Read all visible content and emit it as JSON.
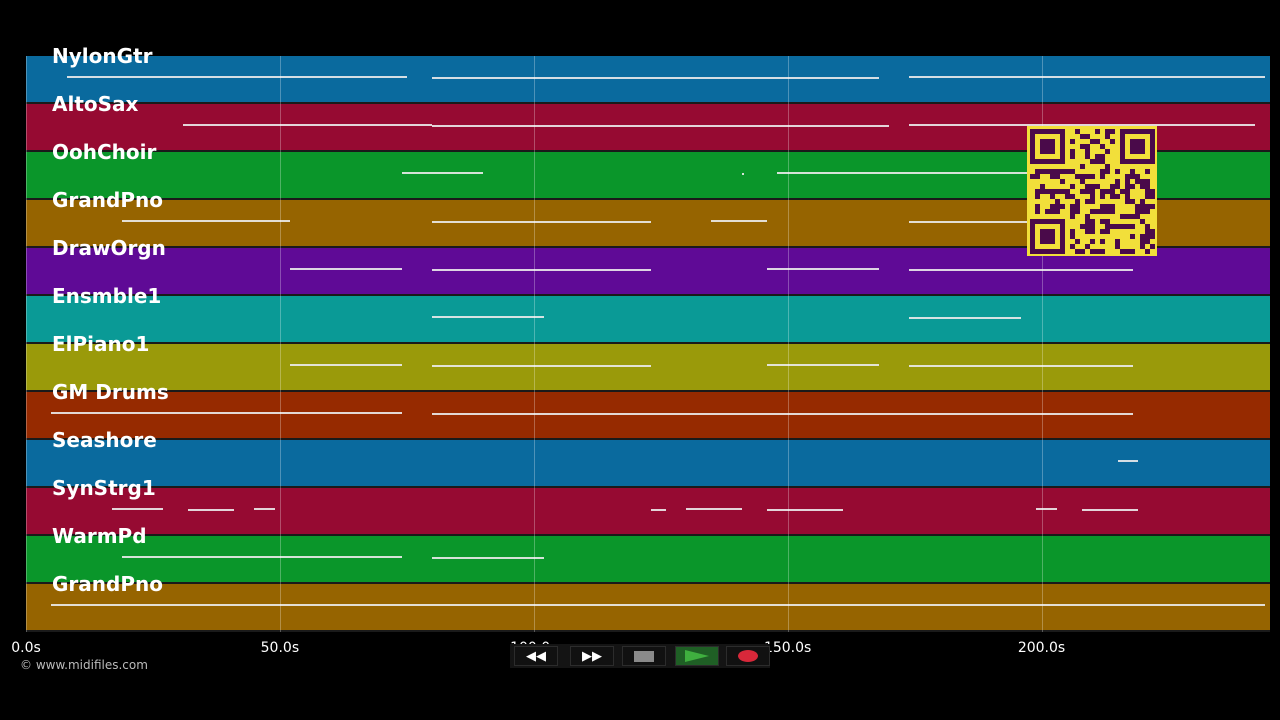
{
  "tracks": [
    {
      "name": "NylonGtr",
      "color": "#0a6a9e"
    },
    {
      "name": "AltoSax",
      "color": "#960a32"
    },
    {
      "name": "OohChoir",
      "color": "#0a962a"
    },
    {
      "name": "GrandPno",
      "color": "#966400"
    },
    {
      "name": "DrawOrgn",
      "color": "#5f0a96"
    },
    {
      "name": "Ensmble1",
      "color": "#0a9a96"
    },
    {
      "name": "ElPiano1",
      "color": "#9a9a0a"
    },
    {
      "name": "GM Drums",
      "color": "#962a00"
    },
    {
      "name": "Seashore",
      "color": "#0a6a9e"
    },
    {
      "name": "SynStrg1",
      "color": "#960a32"
    },
    {
      "name": "WarmPd",
      "color": "#0a962a"
    },
    {
      "name": "GrandPno",
      "color": "#966400"
    }
  ],
  "time_axis": {
    "ticks": [
      "0.0s",
      "50.0s",
      "100.0s",
      "150.0s",
      "200.0s"
    ],
    "tick_values": [
      0,
      50,
      100,
      150,
      200
    ],
    "max_seconds": 245
  },
  "notes_seconds": [
    [
      [
        8,
        75
      ],
      [
        80,
        168
      ],
      [
        174,
        244
      ]
    ],
    [
      [
        31,
        80
      ],
      [
        80,
        170
      ],
      [
        174,
        242
      ]
    ],
    [
      [
        74,
        90
      ],
      [
        141,
        140
      ],
      [
        148,
        203
      ]
    ],
    [
      [
        19,
        52
      ],
      [
        80,
        123
      ],
      [
        135,
        146
      ],
      [
        174,
        205
      ]
    ],
    [
      [
        52,
        74
      ],
      [
        80,
        123
      ],
      [
        146,
        168
      ],
      [
        174,
        218
      ]
    ],
    [
      [
        80,
        102
      ],
      [
        174,
        196
      ]
    ],
    [
      [
        52,
        74
      ],
      [
        80,
        123
      ],
      [
        146,
        168
      ],
      [
        174,
        218
      ]
    ],
    [
      [
        5,
        74
      ],
      [
        80,
        218
      ]
    ],
    [
      [
        215,
        219
      ]
    ],
    [
      [
        17,
        27
      ],
      [
        32,
        41
      ],
      [
        45,
        49
      ],
      [
        123,
        126
      ],
      [
        130,
        141
      ],
      [
        146,
        161
      ],
      [
        199,
        203
      ],
      [
        208,
        219
      ]
    ],
    [
      [
        19,
        74
      ],
      [
        80,
        102
      ]
    ],
    [
      [
        5,
        244
      ]
    ]
  ],
  "credit": "© www.midifiles.com",
  "transport": {
    "rewind": "◀◀",
    "forward": "▶▶",
    "stop_color": "#8a8a8a",
    "play_color": "#3faf3f",
    "record_color": "#d8283a"
  },
  "qr_code": {
    "fg": "#4a0a4a",
    "bg": "#f2df3a"
  }
}
